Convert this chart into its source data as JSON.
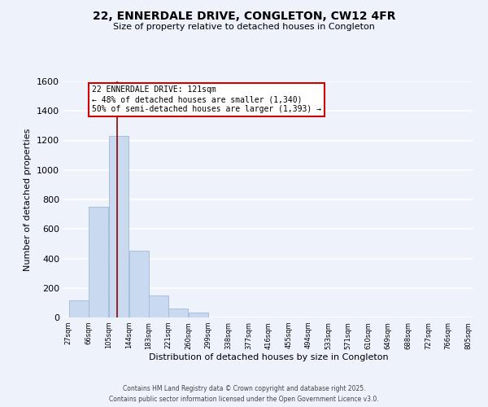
{
  "title": "22, ENNERDALE DRIVE, CONGLETON, CW12 4FR",
  "subtitle": "Size of property relative to detached houses in Congleton",
  "xlabel": "Distribution of detached houses by size in Congleton",
  "ylabel": "Number of detached properties",
  "bin_edges": [
    27,
    66,
    105,
    144,
    183,
    221,
    260,
    299,
    338,
    377,
    416,
    455,
    494,
    533,
    571,
    610,
    649,
    688,
    727,
    766,
    805
  ],
  "bar_heights": [
    115,
    750,
    1230,
    450,
    150,
    60,
    35,
    0,
    0,
    0,
    0,
    0,
    0,
    0,
    0,
    0,
    0,
    0,
    0,
    0
  ],
  "bar_color": "#c9d9f0",
  "bar_edgecolor": "#a0b8d8",
  "background_color": "#eef2fb",
  "grid_color": "#ffffff",
  "red_line_x": 121,
  "annotation_title": "22 ENNERDALE DRIVE: 121sqm",
  "annotation_line1": "← 48% of detached houses are smaller (1,340)",
  "annotation_line2": "50% of semi-detached houses are larger (1,393) →",
  "annotation_box_color": "#ffffff",
  "annotation_box_edgecolor": "#cc0000",
  "red_line_color": "#8b0000",
  "ylim": [
    0,
    1600
  ],
  "yticks": [
    0,
    200,
    400,
    600,
    800,
    1000,
    1200,
    1400,
    1600
  ],
  "footer1": "Contains HM Land Registry data © Crown copyright and database right 2025.",
  "footer2": "Contains public sector information licensed under the Open Government Licence v3.0."
}
